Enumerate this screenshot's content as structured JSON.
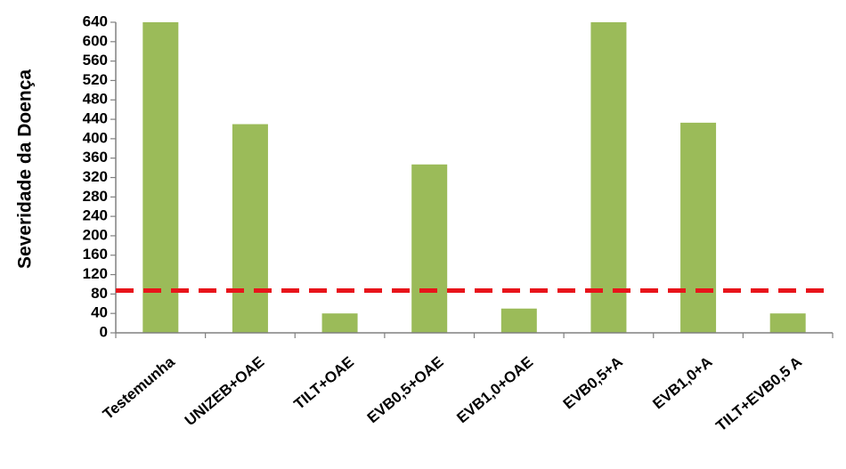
{
  "chart_data": {
    "type": "bar",
    "title": "",
    "xlabel": "",
    "ylabel": "Severidade da Doença",
    "ylim": [
      0,
      640
    ],
    "ytick_step": 40,
    "grid": false,
    "legend": "none",
    "categories": [
      "Testemunha",
      "UNIZEB+OAE",
      "TILT+OAE",
      "EVB0,5+OAE",
      "EVB1,0+OAE",
      "EVB0,5+A",
      "EVB1,0+A",
      "TILT+EVB0,5 A"
    ],
    "values": [
      640,
      430,
      40,
      347,
      50,
      640,
      433,
      40
    ],
    "reference_line": {
      "value": 87,
      "style": "dashed"
    },
    "colors": {
      "bar": "#9bbb59",
      "reference_line": "#e8141b",
      "axis": "#808080"
    }
  }
}
